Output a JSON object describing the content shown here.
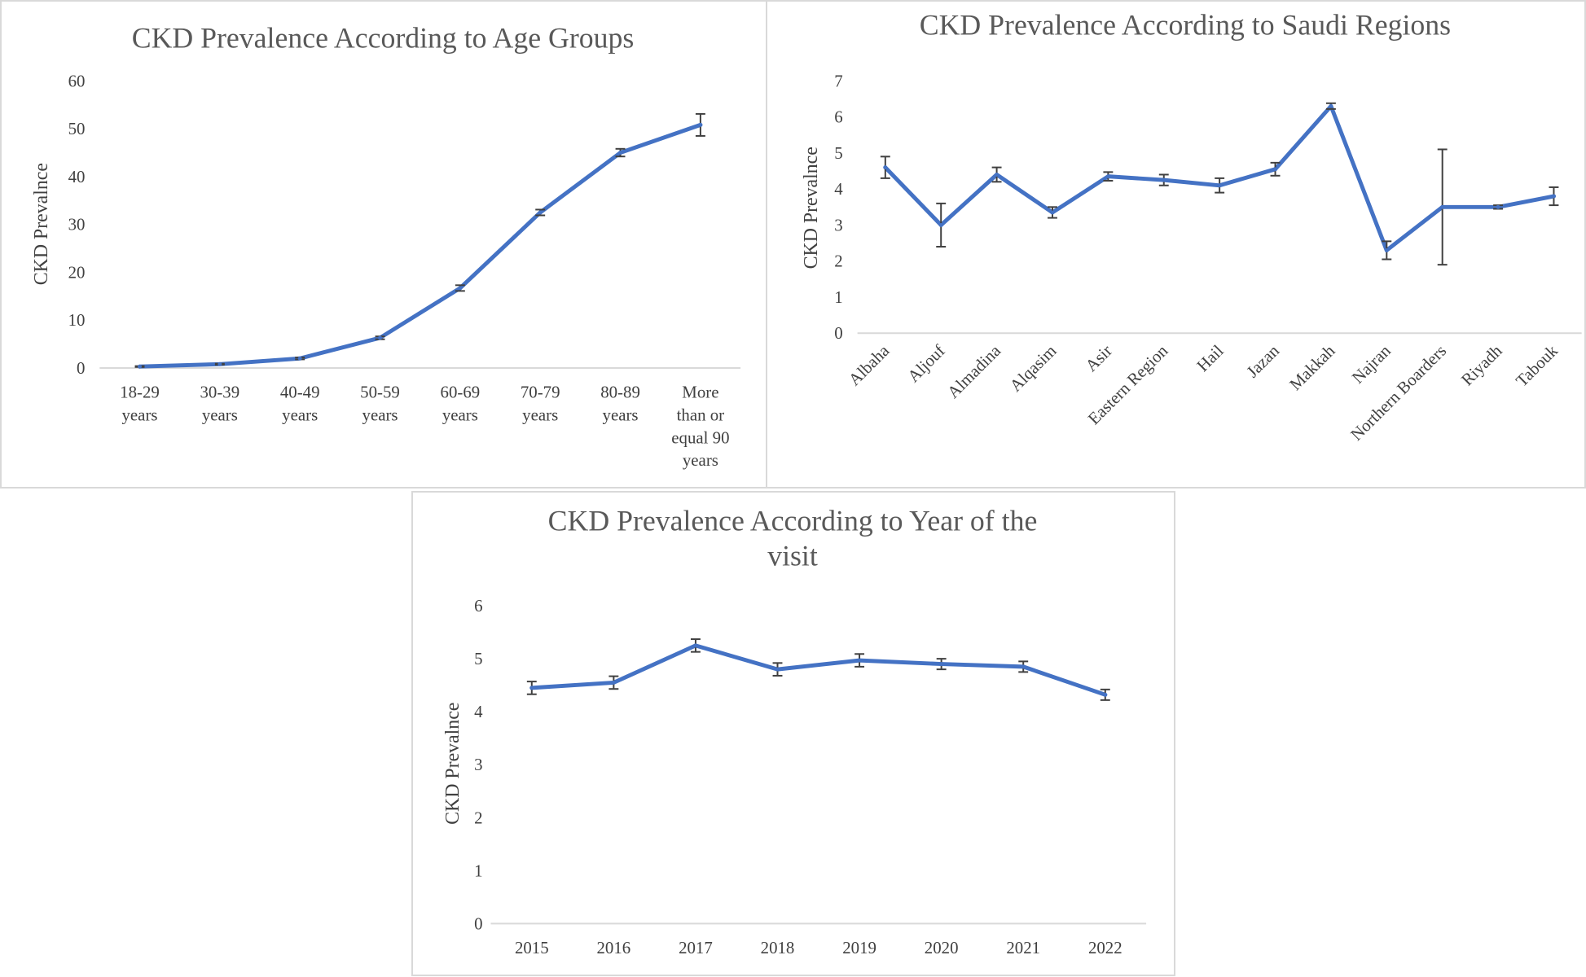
{
  "colors": {
    "series": "#4472c4",
    "error_bar": "#404040",
    "axis": "#d9d9d9",
    "text": "#595959"
  },
  "chart_data": [
    {
      "id": "age",
      "type": "line",
      "title": "CKD Prevalence According to Age Groups",
      "title_lines": [
        "CKD Prevalence According to Age Groups"
      ],
      "xlabel": "",
      "ylabel": "CKD Prevalnce",
      "ylim": [
        0,
        60
      ],
      "yticks": [
        0,
        10,
        20,
        30,
        40,
        50,
        60
      ],
      "grid": false,
      "tick_style": "multiline",
      "categories": [
        "18-29 years",
        "30-39 years",
        "40-49 years",
        "50-59 years",
        "60-69 years",
        "70-79 years",
        "80-89 years",
        "More than or equal 90 years"
      ],
      "category_lines": [
        [
          "18-29",
          "years"
        ],
        [
          "30-39",
          "years"
        ],
        [
          "40-49",
          "years"
        ],
        [
          "50-59",
          "years"
        ],
        [
          "60-69",
          "years"
        ],
        [
          "70-79",
          "years"
        ],
        [
          "80-89",
          "years"
        ],
        [
          "More",
          "than or",
          "equal 90",
          "years"
        ]
      ],
      "series": [
        {
          "name": "CKD Prevalence",
          "values": [
            0.3,
            0.8,
            2.0,
            6.3,
            16.7,
            32.5,
            45.0,
            50.8
          ],
          "error": [
            0.1,
            0.1,
            0.2,
            0.3,
            0.6,
            0.6,
            0.8,
            2.3
          ]
        }
      ]
    },
    {
      "id": "region",
      "type": "line",
      "title": "CKD Prevalence According to Saudi Regions",
      "title_lines": [
        "CKD Prevalence According to Saudi Regions"
      ],
      "xlabel": "",
      "ylabel": "CKD Prevalnce",
      "ylim": [
        0,
        7
      ],
      "yticks": [
        0,
        1,
        2,
        3,
        4,
        5,
        6,
        7
      ],
      "grid": false,
      "tick_style": "rotated",
      "categories": [
        "Albaha",
        "Aljouf",
        "Almadina",
        "Alqasim",
        "Asir",
        "Eastern Region",
        "Hail",
        "Jazan",
        "Makkah",
        "Najran",
        "Northern Boarders",
        "Riyadh",
        "Tabouk"
      ],
      "series": [
        {
          "name": "CKD Prevalence",
          "values": [
            4.6,
            3.0,
            4.4,
            3.35,
            4.35,
            4.25,
            4.1,
            4.55,
            6.3,
            2.3,
            3.5,
            3.5,
            3.8
          ],
          "error": [
            0.3,
            0.6,
            0.2,
            0.15,
            0.12,
            0.15,
            0.2,
            0.18,
            0.08,
            0.25,
            1.6,
            0.05,
            0.25
          ]
        }
      ]
    },
    {
      "id": "year",
      "type": "line",
      "title": "CKD Prevalence According to Year of the visit",
      "title_lines": [
        "CKD Prevalence According to Year of the",
        "visit"
      ],
      "xlabel": "",
      "ylabel": "CKD Prevalnce",
      "ylim": [
        0,
        6
      ],
      "yticks": [
        0,
        1,
        2,
        3,
        4,
        5,
        6
      ],
      "grid": false,
      "tick_style": "horizontal",
      "categories": [
        "2015",
        "2016",
        "2017",
        "2018",
        "2019",
        "2020",
        "2021",
        "2022"
      ],
      "series": [
        {
          "name": "CKD Prevalence",
          "values": [
            4.45,
            4.55,
            5.25,
            4.8,
            4.97,
            4.9,
            4.85,
            4.32
          ],
          "error": [
            0.12,
            0.12,
            0.12,
            0.12,
            0.12,
            0.1,
            0.1,
            0.1
          ]
        }
      ]
    }
  ]
}
